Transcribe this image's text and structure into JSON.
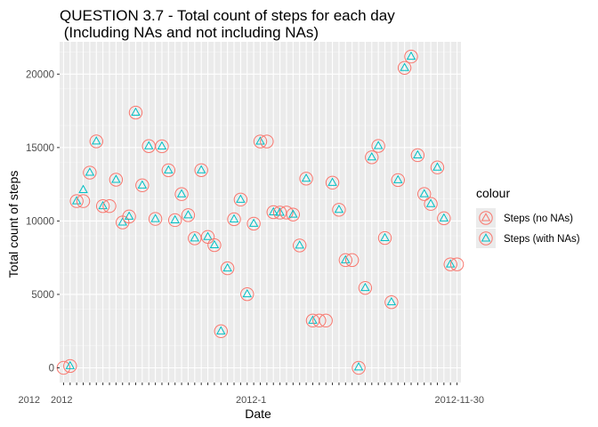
{
  "chart_data": {
    "type": "scatter",
    "title_line1": "QUESTION 3.7 - Total count of steps for each day",
    "title_line2": " (Including NAs and not including NAs)",
    "xlabel": "Date",
    "ylabel": "Total count of steps",
    "ylim": [
      -1000,
      22200
    ],
    "yticks": [
      0,
      5000,
      10000,
      15000,
      20000
    ],
    "x_tick_count": 61,
    "x_tick_labels_visible": [
      "2012",
      "2012",
      "2012-1",
      "2012-11-30"
    ],
    "grid": true,
    "legend": {
      "title": "colour",
      "placement": "right",
      "entries": [
        {
          "label": "Steps (no NAs)",
          "color": "#F8766D"
        },
        {
          "label": "Steps (with NAs)",
          "color": "#00BFC4"
        }
      ]
    },
    "series": [
      {
        "name": "Steps (no NAs)",
        "color": "#F8766D",
        "values": [
          0,
          126,
          11352,
          11352,
          13294,
          15420,
          11015,
          11015,
          12811,
          9900,
          10304,
          17382,
          12426,
          15098,
          10139,
          15084,
          13452,
          10056,
          11829,
          10395,
          8821,
          13460,
          8918,
          8355,
          2492,
          6778,
          10119,
          11458,
          5018,
          9819,
          15414,
          15414,
          10600,
          10571,
          10571,
          10439,
          8334,
          12883,
          3219,
          3219,
          3219,
          12608,
          10765,
          7336,
          7336,
          0,
          5441,
          14339,
          15110,
          8841,
          4472,
          12787,
          20427,
          21194,
          14478,
          11834,
          11162,
          13646,
          10183,
          7047,
          7047
        ]
      },
      {
        "name": "Steps (with NAs)",
        "color": "#00BFC4",
        "values": [
          null,
          126,
          11352,
          12116,
          13294,
          15420,
          11015,
          null,
          12811,
          9900,
          10304,
          17382,
          12426,
          15098,
          10139,
          15084,
          13452,
          10056,
          11829,
          10395,
          8821,
          13460,
          8918,
          8355,
          2492,
          6778,
          10119,
          11458,
          5018,
          9819,
          15414,
          null,
          10600,
          10571,
          null,
          10439,
          8334,
          12883,
          3219,
          null,
          null,
          12608,
          10765,
          7336,
          null,
          41,
          5441,
          14339,
          15110,
          8841,
          4472,
          12787,
          20427,
          21194,
          14478,
          11834,
          11162,
          13646,
          10183,
          7047,
          null
        ]
      }
    ]
  }
}
